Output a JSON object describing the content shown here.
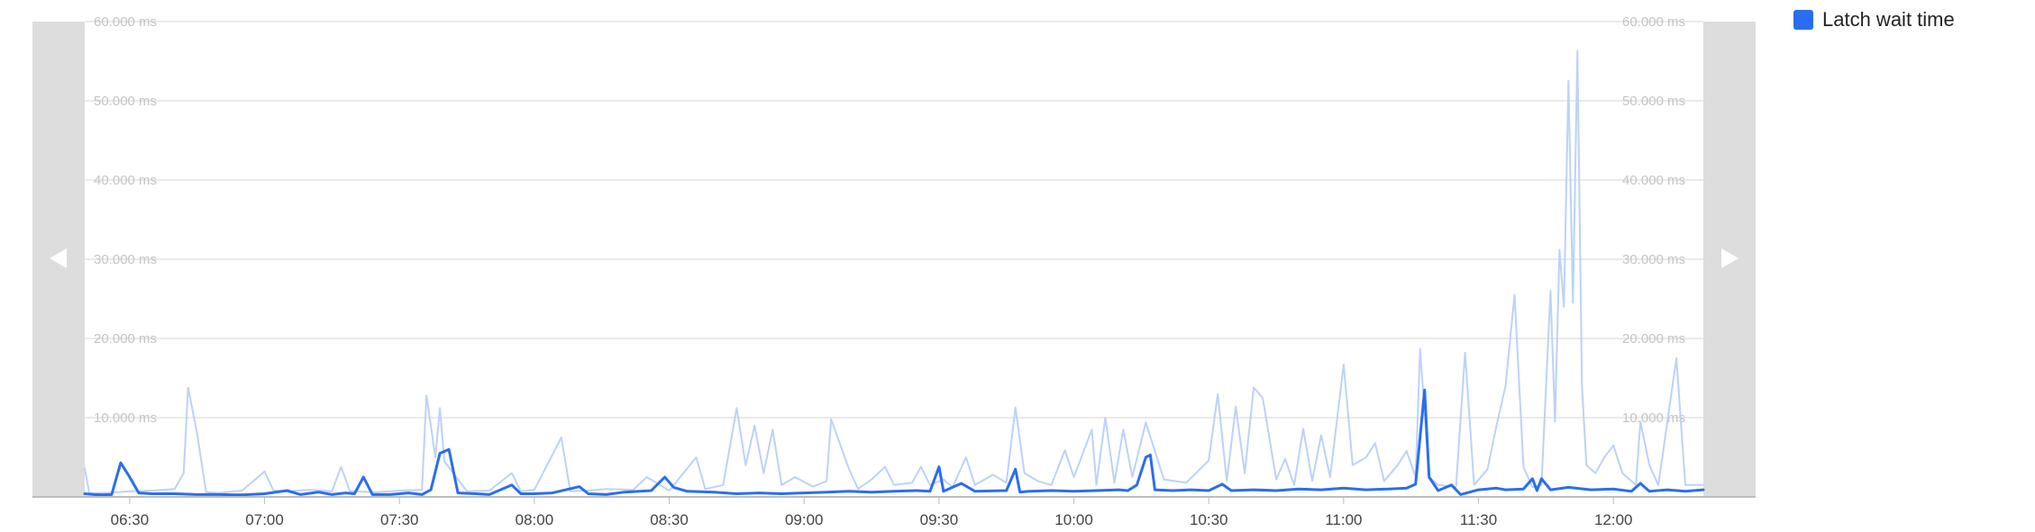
{
  "chart_data": {
    "type": "line",
    "title": "",
    "xlabel": "",
    "ylabel": "",
    "x_start": "06:20",
    "x_end": "12:20",
    "x_ticks": [
      "06:30",
      "07:00",
      "07:30",
      "08:00",
      "08:30",
      "09:00",
      "09:30",
      "10:00",
      "10:30",
      "11:00",
      "11:30",
      "12:00"
    ],
    "y_unit": "ms",
    "ylim": [
      0,
      60000
    ],
    "y_ticks": [
      10000,
      20000,
      30000,
      40000,
      50000,
      60000
    ],
    "y_tick_labels": [
      "10.000 ms",
      "20.000 ms",
      "30.000 ms",
      "40.000 ms",
      "50.000 ms",
      "60.000 ms"
    ],
    "grid": true,
    "legend_position": "top-right",
    "series": [
      {
        "name": "Latch wait time",
        "color": "#2a6df2",
        "style": "main",
        "points": [
          [
            "06:20",
            400
          ],
          [
            "06:22",
            300
          ],
          [
            "06:24",
            250
          ],
          [
            "06:26",
            300
          ],
          [
            "06:28",
            4300
          ],
          [
            "06:30",
            2500
          ],
          [
            "06:32",
            500
          ],
          [
            "06:35",
            400
          ],
          [
            "06:40",
            400
          ],
          [
            "06:45",
            300
          ],
          [
            "06:50",
            300
          ],
          [
            "06:55",
            250
          ],
          [
            "07:00",
            400
          ],
          [
            "07:05",
            800
          ],
          [
            "07:08",
            300
          ],
          [
            "07:12",
            600
          ],
          [
            "07:15",
            300
          ],
          [
            "07:18",
            500
          ],
          [
            "07:20",
            400
          ],
          [
            "07:22",
            2500
          ],
          [
            "07:24",
            300
          ],
          [
            "07:28",
            300
          ],
          [
            "07:32",
            500
          ],
          [
            "07:35",
            300
          ],
          [
            "07:37",
            900
          ],
          [
            "07:39",
            5500
          ],
          [
            "07:41",
            6000
          ],
          [
            "07:43",
            500
          ],
          [
            "07:47",
            400
          ],
          [
            "07:50",
            300
          ],
          [
            "07:55",
            1500
          ],
          [
            "07:57",
            400
          ],
          [
            "08:00",
            400
          ],
          [
            "08:04",
            500
          ],
          [
            "08:10",
            1300
          ],
          [
            "08:12",
            400
          ],
          [
            "08:16",
            300
          ],
          [
            "08:20",
            600
          ],
          [
            "08:26",
            800
          ],
          [
            "08:29",
            2500
          ],
          [
            "08:31",
            1200
          ],
          [
            "08:34",
            700
          ],
          [
            "08:40",
            600
          ],
          [
            "08:45",
            400
          ],
          [
            "08:50",
            500
          ],
          [
            "08:55",
            400
          ],
          [
            "09:00",
            500
          ],
          [
            "09:05",
            600
          ],
          [
            "09:10",
            700
          ],
          [
            "09:15",
            600
          ],
          [
            "09:20",
            700
          ],
          [
            "09:25",
            800
          ],
          [
            "09:28",
            700
          ],
          [
            "09:30",
            3800
          ],
          [
            "09:31",
            700
          ],
          [
            "09:35",
            1700
          ],
          [
            "09:38",
            700
          ],
          [
            "09:45",
            800
          ],
          [
            "09:47",
            3500
          ],
          [
            "09:48",
            600
          ],
          [
            "09:50",
            700
          ],
          [
            "09:55",
            800
          ],
          [
            "10:00",
            700
          ],
          [
            "10:05",
            800
          ],
          [
            "10:10",
            900
          ],
          [
            "10:12",
            800
          ],
          [
            "10:14",
            1500
          ],
          [
            "10:16",
            5000
          ],
          [
            "10:17",
            5300
          ],
          [
            "10:18",
            900
          ],
          [
            "10:22",
            800
          ],
          [
            "10:26",
            900
          ],
          [
            "10:30",
            800
          ],
          [
            "10:33",
            1600
          ],
          [
            "10:35",
            800
          ],
          [
            "10:40",
            900
          ],
          [
            "10:45",
            800
          ],
          [
            "10:50",
            1000
          ],
          [
            "10:55",
            900
          ],
          [
            "11:00",
            1100
          ],
          [
            "11:05",
            900
          ],
          [
            "11:10",
            1000
          ],
          [
            "11:14",
            1100
          ],
          [
            "11:16",
            1600
          ],
          [
            "11:18",
            13500
          ],
          [
            "11:19",
            2500
          ],
          [
            "11:21",
            800
          ],
          [
            "11:24",
            1500
          ],
          [
            "11:26",
            300
          ],
          [
            "11:30",
            900
          ],
          [
            "11:34",
            1100
          ],
          [
            "11:36",
            900
          ],
          [
            "11:40",
            1000
          ],
          [
            "11:42",
            2300
          ],
          [
            "11:43",
            800
          ],
          [
            "11:44",
            2300
          ],
          [
            "11:46",
            900
          ],
          [
            "11:50",
            1200
          ],
          [
            "11:55",
            900
          ],
          [
            "12:00",
            1000
          ],
          [
            "12:04",
            700
          ],
          [
            "12:06",
            1700
          ],
          [
            "12:08",
            700
          ],
          [
            "12:12",
            900
          ],
          [
            "12:16",
            700
          ],
          [
            "12:20",
            900
          ]
        ]
      },
      {
        "name": "",
        "color": "#bcd2f8",
        "style": "background",
        "points": [
          [
            "06:20",
            3600
          ],
          [
            "06:21",
            500
          ],
          [
            "06:25",
            500
          ],
          [
            "06:30",
            700
          ],
          [
            "06:35",
            800
          ],
          [
            "06:40",
            1000
          ],
          [
            "06:42",
            3000
          ],
          [
            "06:43",
            13800
          ],
          [
            "06:45",
            8000
          ],
          [
            "06:47",
            600
          ],
          [
            "06:50",
            500
          ],
          [
            "06:55",
            800
          ],
          [
            "07:00",
            3200
          ],
          [
            "07:02",
            800
          ],
          [
            "07:05",
            700
          ],
          [
            "07:10",
            900
          ],
          [
            "07:15",
            700
          ],
          [
            "07:17",
            3800
          ],
          [
            "07:19",
            700
          ],
          [
            "07:25",
            600
          ],
          [
            "07:30",
            800
          ],
          [
            "07:35",
            900
          ],
          [
            "07:36",
            12800
          ],
          [
            "07:38",
            5000
          ],
          [
            "07:39",
            11200
          ],
          [
            "07:40",
            4500
          ],
          [
            "07:45",
            700
          ],
          [
            "07:50",
            800
          ],
          [
            "07:55",
            3000
          ],
          [
            "07:57",
            700
          ],
          [
            "08:00",
            900
          ],
          [
            "08:06",
            7500
          ],
          [
            "08:08",
            700
          ],
          [
            "08:12",
            800
          ],
          [
            "08:16",
            1000
          ],
          [
            "08:22",
            900
          ],
          [
            "08:25",
            2500
          ],
          [
            "08:30",
            800
          ],
          [
            "08:36",
            5000
          ],
          [
            "08:38",
            1000
          ],
          [
            "08:42",
            1500
          ],
          [
            "08:45",
            11200
          ],
          [
            "08:47",
            4000
          ],
          [
            "08:49",
            9000
          ],
          [
            "08:51",
            3000
          ],
          [
            "08:53",
            8500
          ],
          [
            "08:55",
            1500
          ],
          [
            "08:58",
            2500
          ],
          [
            "09:02",
            1300
          ],
          [
            "09:05",
            2000
          ],
          [
            "09:06",
            9800
          ],
          [
            "09:10",
            3500
          ],
          [
            "09:12",
            1000
          ],
          [
            "09:15",
            2200
          ],
          [
            "09:18",
            3800
          ],
          [
            "09:20",
            1500
          ],
          [
            "09:24",
            1800
          ],
          [
            "09:26",
            3800
          ],
          [
            "09:28",
            1500
          ],
          [
            "09:31",
            2200
          ],
          [
            "09:33",
            1200
          ],
          [
            "09:36",
            5000
          ],
          [
            "09:38",
            1500
          ],
          [
            "09:42",
            2800
          ],
          [
            "09:45",
            1800
          ],
          [
            "09:47",
            11300
          ],
          [
            "09:49",
            3000
          ],
          [
            "09:52",
            2000
          ],
          [
            "09:55",
            1500
          ],
          [
            "09:58",
            5900
          ],
          [
            "10:00",
            2500
          ],
          [
            "10:04",
            8500
          ],
          [
            "10:05",
            1500
          ],
          [
            "10:07",
            10000
          ],
          [
            "10:09",
            1800
          ],
          [
            "10:11",
            8500
          ],
          [
            "10:13",
            2500
          ],
          [
            "10:16",
            9400
          ],
          [
            "10:18",
            5800
          ],
          [
            "10:20",
            2200
          ],
          [
            "10:25",
            1800
          ],
          [
            "10:30",
            4600
          ],
          [
            "10:32",
            13000
          ],
          [
            "10:34",
            2000
          ],
          [
            "10:36",
            11400
          ],
          [
            "10:38",
            3000
          ],
          [
            "10:40",
            13800
          ],
          [
            "10:42",
            12500
          ],
          [
            "10:45",
            2200
          ],
          [
            "10:47",
            4800
          ],
          [
            "10:49",
            1500
          ],
          [
            "10:51",
            8600
          ],
          [
            "10:53",
            2000
          ],
          [
            "10:55",
            7800
          ],
          [
            "10:57",
            2500
          ],
          [
            "11:00",
            16700
          ],
          [
            "11:02",
            4000
          ],
          [
            "11:05",
            5000
          ],
          [
            "11:07",
            6800
          ],
          [
            "11:09",
            2000
          ],
          [
            "11:12",
            4000
          ],
          [
            "11:14",
            5800
          ],
          [
            "11:16",
            2500
          ],
          [
            "11:17",
            18700
          ],
          [
            "11:19",
            2500
          ],
          [
            "11:21",
            1500
          ],
          [
            "11:25",
            1300
          ],
          [
            "11:27",
            18200
          ],
          [
            "11:29",
            1500
          ],
          [
            "11:32",
            3500
          ],
          [
            "11:34",
            9000
          ],
          [
            "11:36",
            14000
          ],
          [
            "11:38",
            25500
          ],
          [
            "11:40",
            3800
          ],
          [
            "11:42",
            1200
          ],
          [
            "11:44",
            1500
          ],
          [
            "11:46",
            26000
          ],
          [
            "11:47",
            9500
          ],
          [
            "11:48",
            31200
          ],
          [
            "11:49",
            24000
          ],
          [
            "11:50",
            52500
          ],
          [
            "11:51",
            24500
          ],
          [
            "11:52",
            56300
          ],
          [
            "11:53",
            14000
          ],
          [
            "11:54",
            4000
          ],
          [
            "11:56",
            3000
          ],
          [
            "11:58",
            5000
          ],
          [
            "12:00",
            6500
          ],
          [
            "12:02",
            3000
          ],
          [
            "12:05",
            1500
          ],
          [
            "12:06",
            9500
          ],
          [
            "12:08",
            4000
          ],
          [
            "12:10",
            1500
          ],
          [
            "12:14",
            17500
          ],
          [
            "12:16",
            1500
          ],
          [
            "12:20",
            1500
          ]
        ]
      }
    ]
  },
  "legend": {
    "items": [
      {
        "label": "Latch wait time",
        "color": "#2a6df2"
      }
    ]
  },
  "nav": {
    "prev_icon": "chevron-left-icon",
    "next_icon": "chevron-right-icon"
  }
}
